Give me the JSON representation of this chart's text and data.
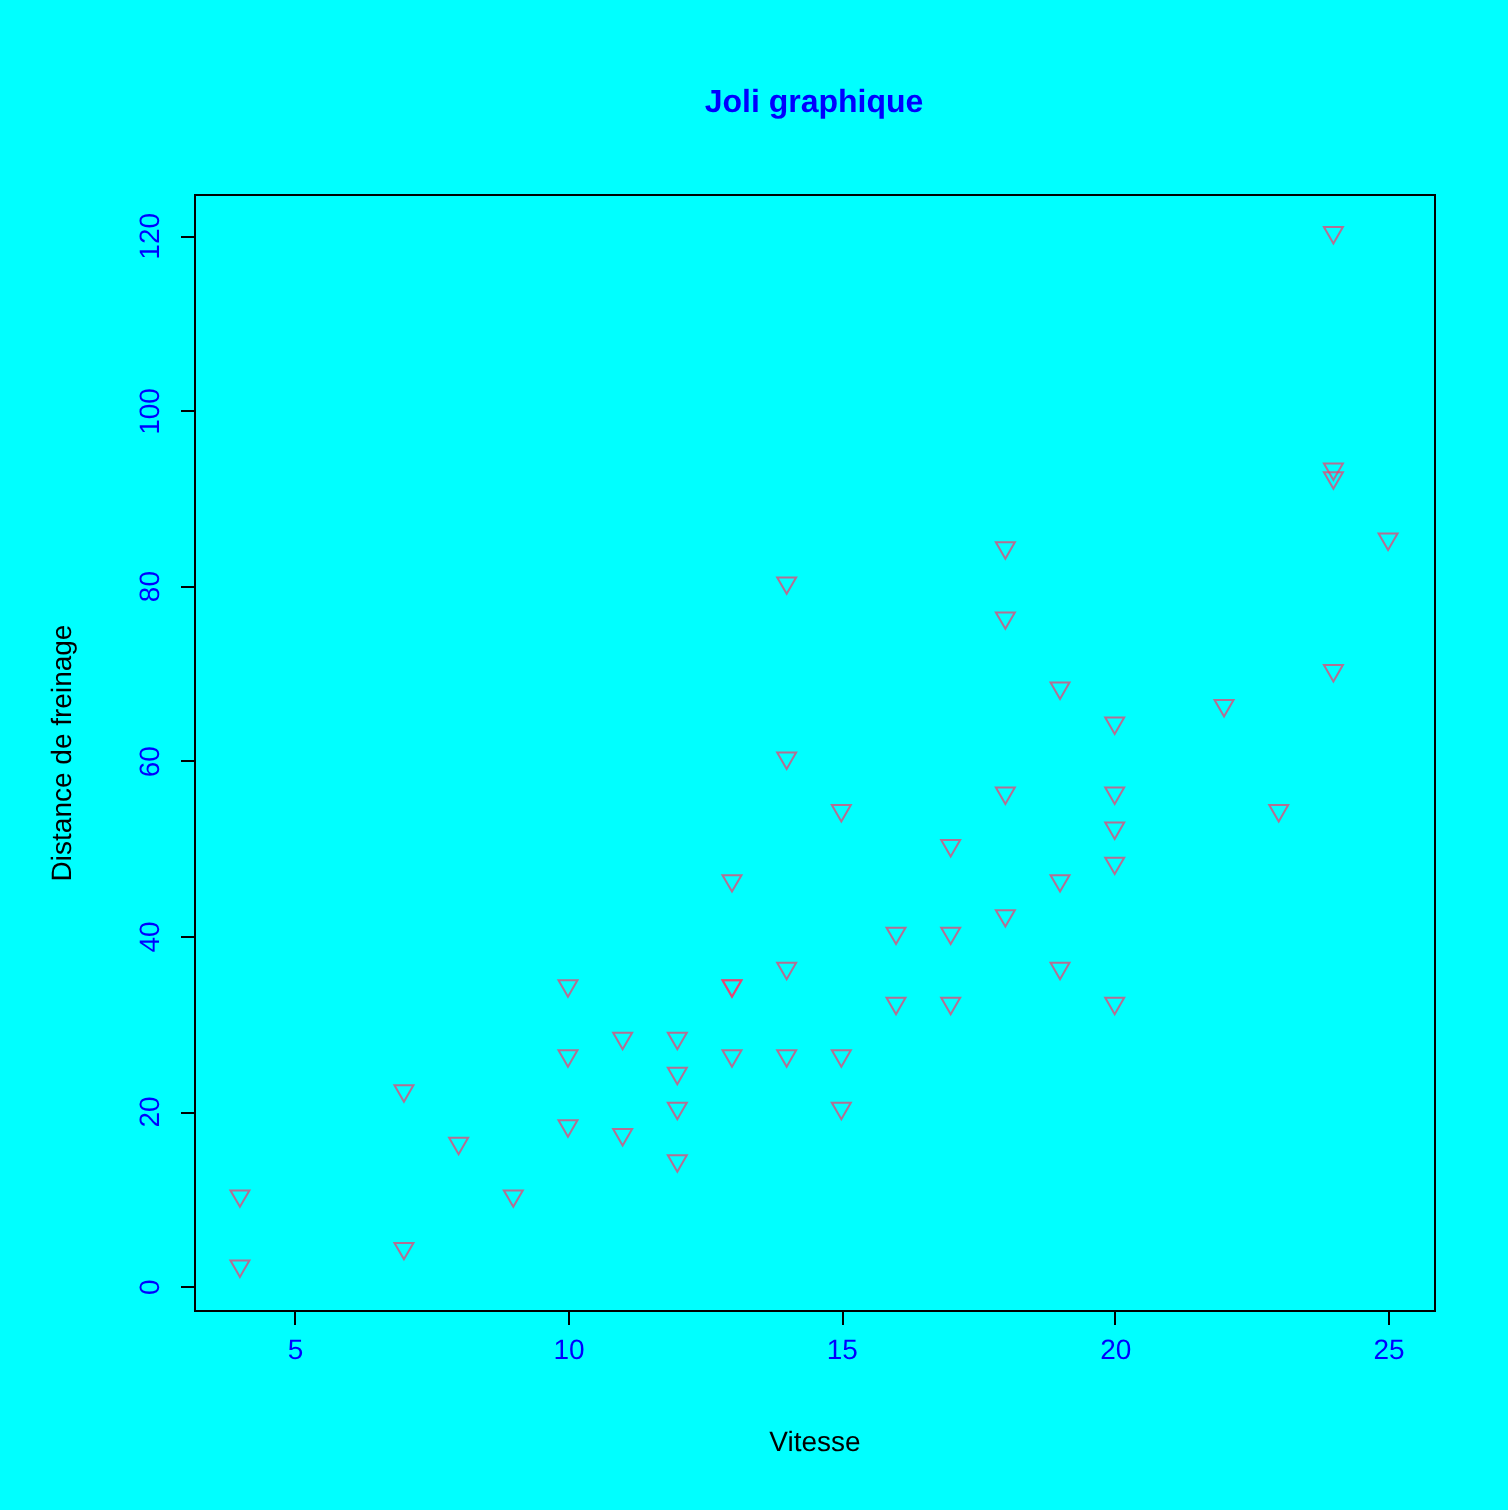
{
  "chart_data": {
    "type": "scatter",
    "title": "Joli graphique",
    "xlabel": "Vitesse",
    "ylabel": "Distance de freinage",
    "x": [
      4,
      4,
      7,
      7,
      8,
      9,
      10,
      10,
      10,
      11,
      11,
      12,
      12,
      12,
      12,
      13,
      13,
      13,
      13,
      14,
      14,
      14,
      14,
      15,
      15,
      15,
      16,
      16,
      17,
      17,
      17,
      18,
      18,
      18,
      18,
      19,
      19,
      19,
      20,
      20,
      20,
      20,
      20,
      22,
      23,
      24,
      24,
      24,
      24,
      25
    ],
    "series": [
      {
        "color": "#ff3366",
        "values": [
          2,
          10,
          4,
          22,
          16,
          10,
          18,
          26,
          34,
          17,
          28,
          14,
          20,
          24,
          28,
          26,
          34,
          34,
          46,
          26,
          36,
          60,
          80,
          20,
          26,
          54,
          32,
          40,
          32,
          40,
          50,
          42,
          56,
          76,
          84,
          36,
          46,
          68,
          32,
          48,
          52,
          56,
          64,
          66,
          54,
          70,
          92,
          93,
          120,
          85
        ]
      }
    ],
    "xlim": [
      3.16,
      25.84
    ],
    "ylim": [
      -2.72,
      124.72
    ],
    "xticks": [
      5,
      10,
      15,
      20,
      25
    ],
    "yticks": [
      0,
      20,
      40,
      60,
      80,
      100,
      120
    ],
    "marker": "triangle",
    "grid": false
  }
}
